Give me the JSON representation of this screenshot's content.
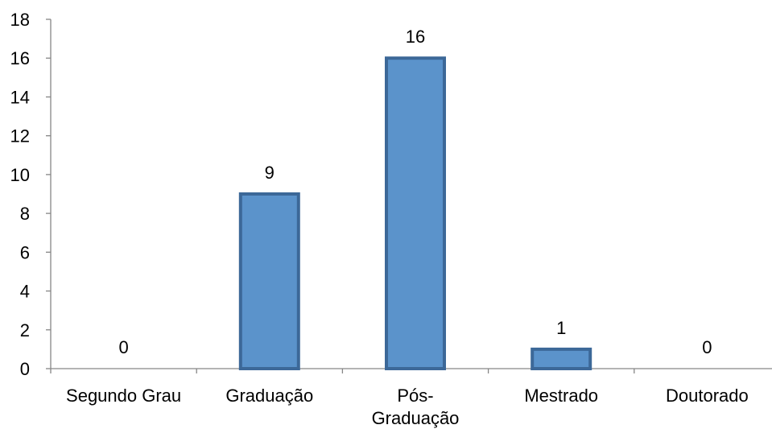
{
  "chart_data": {
    "type": "bar",
    "title": "",
    "xlabel": "",
    "ylabel": "",
    "categories": [
      "Segundo Grau",
      "Graduação",
      "Pós-Graduação",
      "Mestrado",
      "Doutorado"
    ],
    "category_label_lines": [
      [
        "Segundo Grau"
      ],
      [
        "Graduação"
      ],
      [
        "Pós-",
        "Graduação"
      ],
      [
        "Mestrado"
      ],
      [
        "Doutorado"
      ]
    ],
    "values": [
      0,
      9,
      16,
      1,
      0
    ],
    "data_labels": [
      "0",
      "9",
      "16",
      "1",
      "0"
    ],
    "ylim": [
      0,
      18
    ],
    "yticks": [
      0,
      2,
      4,
      6,
      8,
      10,
      12,
      14,
      16,
      18
    ],
    "grid": false,
    "legend": "none",
    "colors": {
      "bar_fill": "#5B93CB",
      "bar_stroke": "#3C6898",
      "axis": "#868686"
    }
  }
}
